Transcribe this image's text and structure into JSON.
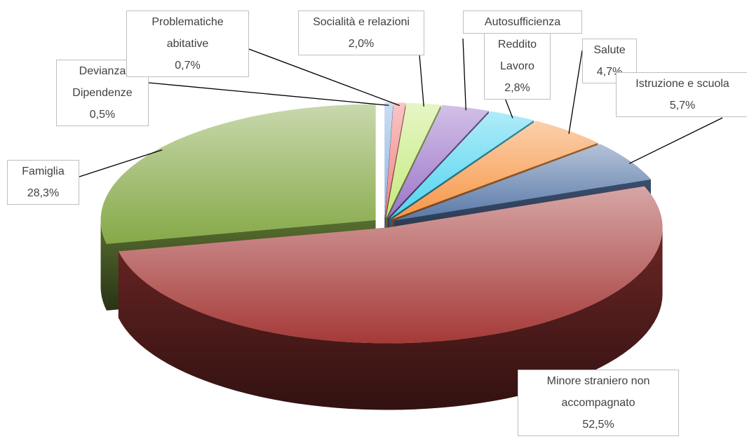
{
  "chart_data": {
    "type": "pie3d",
    "categories": [
      "Devianza Dipendenze",
      "Problematiche abitative",
      "Socialità e relazioni",
      "Autosufficienza",
      "Reddito Lavoro",
      "Salute",
      "Istruzione e scuola",
      "Minore straniero non accompagnato",
      "Famiglia"
    ],
    "values": [
      0.5,
      0.7,
      2.0,
      2.8,
      2.8,
      4.7,
      5.7,
      52.5,
      28.3
    ],
    "value_labels": [
      "0,5%",
      "0,7%",
      "2,0%",
      null,
      "2,8%",
      "4,7%",
      "5,7%",
      "52,5%",
      "28,3%"
    ],
    "colors": [
      "#8db4e2",
      "#f08080",
      "#c6ea7e",
      "#9b74c9",
      "#4fd4f0",
      "#f79646",
      "#5878a8",
      "#a53a38",
      "#86a948"
    ]
  }
}
